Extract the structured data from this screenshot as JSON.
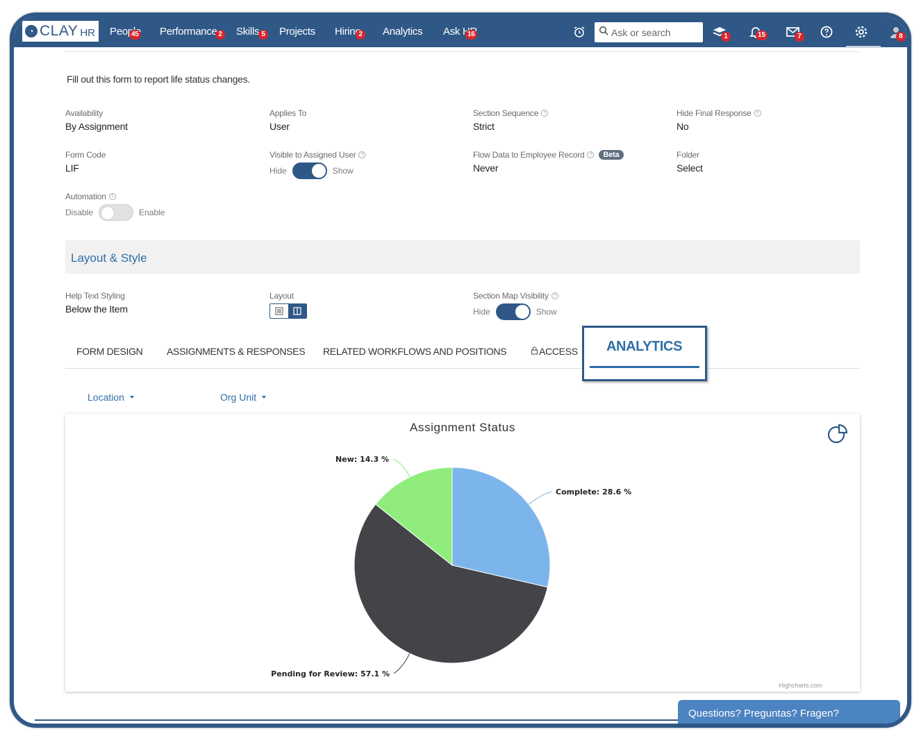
{
  "brand": {
    "name": "CLAY",
    "suffix": "HR"
  },
  "nav": {
    "items": [
      {
        "label": "People",
        "badge": "45"
      },
      {
        "label": "Performance",
        "badge": "2"
      },
      {
        "label": "Skills",
        "badge": "5"
      },
      {
        "label": "Projects",
        "badge": ""
      },
      {
        "label": "Hiring",
        "badge": "2"
      },
      {
        "label": "Analytics",
        "badge": ""
      },
      {
        "label": "Ask HR",
        "badge": "16"
      }
    ],
    "search_placeholder": "Ask or search",
    "icon_badges": {
      "learning": "1",
      "notifications": "15",
      "messages": "7",
      "profile": "8"
    }
  },
  "form": {
    "intro": "Fill out this form to report life status changes.",
    "availability": {
      "label": "Availability",
      "value": "By Assignment"
    },
    "applies_to": {
      "label": "Applies To",
      "value": "User"
    },
    "section_sequence": {
      "label": "Section Sequence",
      "value": "Strict"
    },
    "hide_final_response": {
      "label": "Hide Final Response",
      "value": "No"
    },
    "form_code": {
      "label": "Form Code",
      "value": "LIF"
    },
    "visible_to_assigned_user": {
      "label": "Visible to Assigned User",
      "off_label": "Hide",
      "on_label": "Show",
      "state": "on"
    },
    "flow_data": {
      "label": "Flow Data to Employee Record",
      "beta": "Beta",
      "value": "Never"
    },
    "folder": {
      "label": "Folder",
      "value": "Select"
    },
    "automation": {
      "label": "Automation",
      "off_label": "Disable",
      "on_label": "Enable",
      "state": "off"
    }
  },
  "layout_style": {
    "title": "Layout & Style",
    "help_text_styling": {
      "label": "Help Text Styling",
      "value": "Below the Item"
    },
    "layout": {
      "label": "Layout"
    },
    "section_map_visibility": {
      "label": "Section Map Visibility",
      "off_label": "Hide",
      "on_label": "Show",
      "state": "on"
    }
  },
  "tabs": {
    "form_design": "FORM DESIGN",
    "assignments": "ASSIGNMENTS & RESPONSES",
    "related": "RELATED WORKFLOWS AND POSITIONS",
    "access": "ACCESS",
    "analytics": "ANALYTICS",
    "active": "ANALYTICS"
  },
  "filters": {
    "location": "Location",
    "org_unit": "Org Unit"
  },
  "chart_credit": "Highcharts.com",
  "chart_data": {
    "type": "pie",
    "title": "Assignment Status",
    "slices": [
      {
        "name": "Complete",
        "value": 28.6,
        "label": "Complete: 28.6 %",
        "color": "#7cb5ec"
      },
      {
        "name": "Pending for Review",
        "value": 57.1,
        "label": "Pending for Review: 57.1 %",
        "color": "#434348"
      },
      {
        "name": "New",
        "value": 14.3,
        "label": "New: 14.3 %",
        "color": "#90ed7d"
      }
    ]
  },
  "help_chat": "Questions? Preguntas? Fragen?",
  "colors": {
    "primary": "#2f5887",
    "accent": "#2f6ea8",
    "badge": "#d8262d"
  }
}
